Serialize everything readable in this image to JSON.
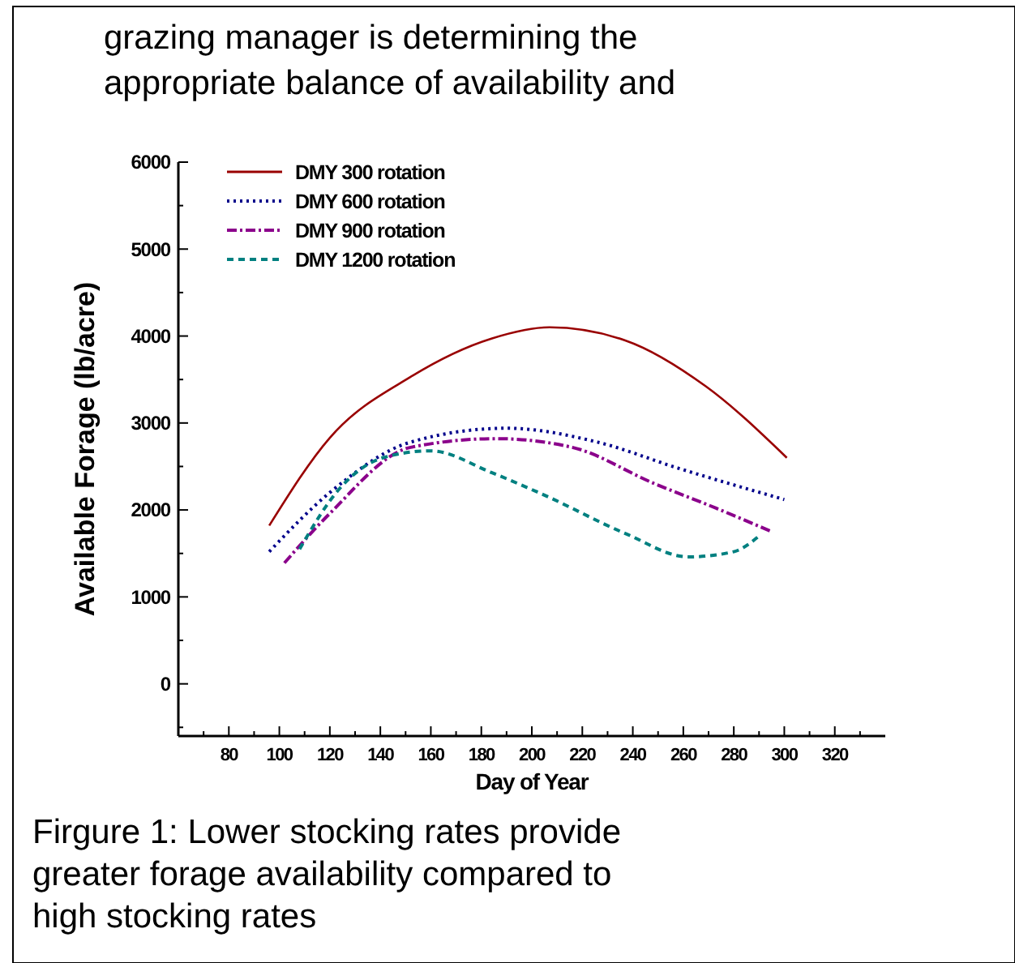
{
  "chart_data": {
    "type": "line",
    "xlabel": "Day of Year",
    "ylabel": "Available Forage (lb/acre)",
    "annotations": [
      "grazing manager is determining the",
      "appropriate balance of availability and",
      "Firgure 1:  Lower stocking rates provide",
      "greater forage availability compared to",
      "high stocking rates"
    ],
    "xlim": [
      60,
      340
    ],
    "ylim": [
      -600,
      6000
    ],
    "xticks": [
      {
        "value": 70,
        "label": null
      },
      80,
      {
        "value": 90,
        "label": null
      },
      100,
      {
        "value": 110,
        "label": null
      },
      120,
      {
        "value": 130,
        "label": null
      },
      140,
      {
        "value": 150,
        "label": null
      },
      160,
      {
        "value": 170,
        "label": null
      },
      180,
      {
        "value": 190,
        "label": null
      },
      200,
      {
        "value": 210,
        "label": null
      },
      220,
      {
        "value": 230,
        "label": null
      },
      240,
      {
        "value": 250,
        "label": null
      },
      260,
      {
        "value": 270,
        "label": null
      },
      280,
      {
        "value": 290,
        "label": null
      },
      300,
      {
        "value": 310,
        "label": null
      },
      320,
      {
        "value": 330,
        "label": null
      }
    ],
    "yticks": [
      {
        "value": -500,
        "label": null
      },
      0,
      {
        "value": 500,
        "label": null
      },
      1000,
      {
        "value": 1500,
        "label": null
      },
      2000,
      {
        "value": 2500,
        "label": null
      },
      3000,
      {
        "value": 3500,
        "label": null
      },
      4000,
      {
        "value": 4500,
        "label": null
      },
      5000,
      {
        "value": 5500,
        "label": null
      },
      6000
    ],
    "legend": "top left",
    "grid": false,
    "marker": "none",
    "series": [
      {
        "name": "DMY 300 rotation",
        "color": "#990000",
        "line_style": "solid",
        "x": [
          96,
          120,
          152,
          184,
          207,
          237,
          269,
          301
        ],
        "values": [
          1820,
          2830,
          3530,
          3970,
          4100,
          3950,
          3420,
          2600
        ]
      },
      {
        "name": "DMY 600 rotation",
        "color": "#00008b",
        "line_style": "dotted",
        "x": [
          96,
          120,
          152,
          190,
          226,
          258,
          300
        ],
        "values": [
          1520,
          2200,
          2780,
          2940,
          2780,
          2480,
          2120
        ]
      },
      {
        "name": "DMY 900 rotation",
        "color": "#8b008b",
        "line_style": "dashdot",
        "x": [
          102,
          120,
          152,
          186,
          216,
          248,
          273,
          295
        ],
        "values": [
          1390,
          1960,
          2720,
          2820,
          2720,
          2310,
          2020,
          1750
        ]
      },
      {
        "name": "DMY 1200 rotation",
        "color": "#008080",
        "line_style": "dashed",
        "x": [
          108,
          124,
          141,
          160,
          184,
          205,
          237,
          262,
          280,
          290
        ],
        "values": [
          1550,
          2250,
          2600,
          2680,
          2430,
          2170,
          1730,
          1460,
          1520,
          1700
        ]
      }
    ]
  }
}
